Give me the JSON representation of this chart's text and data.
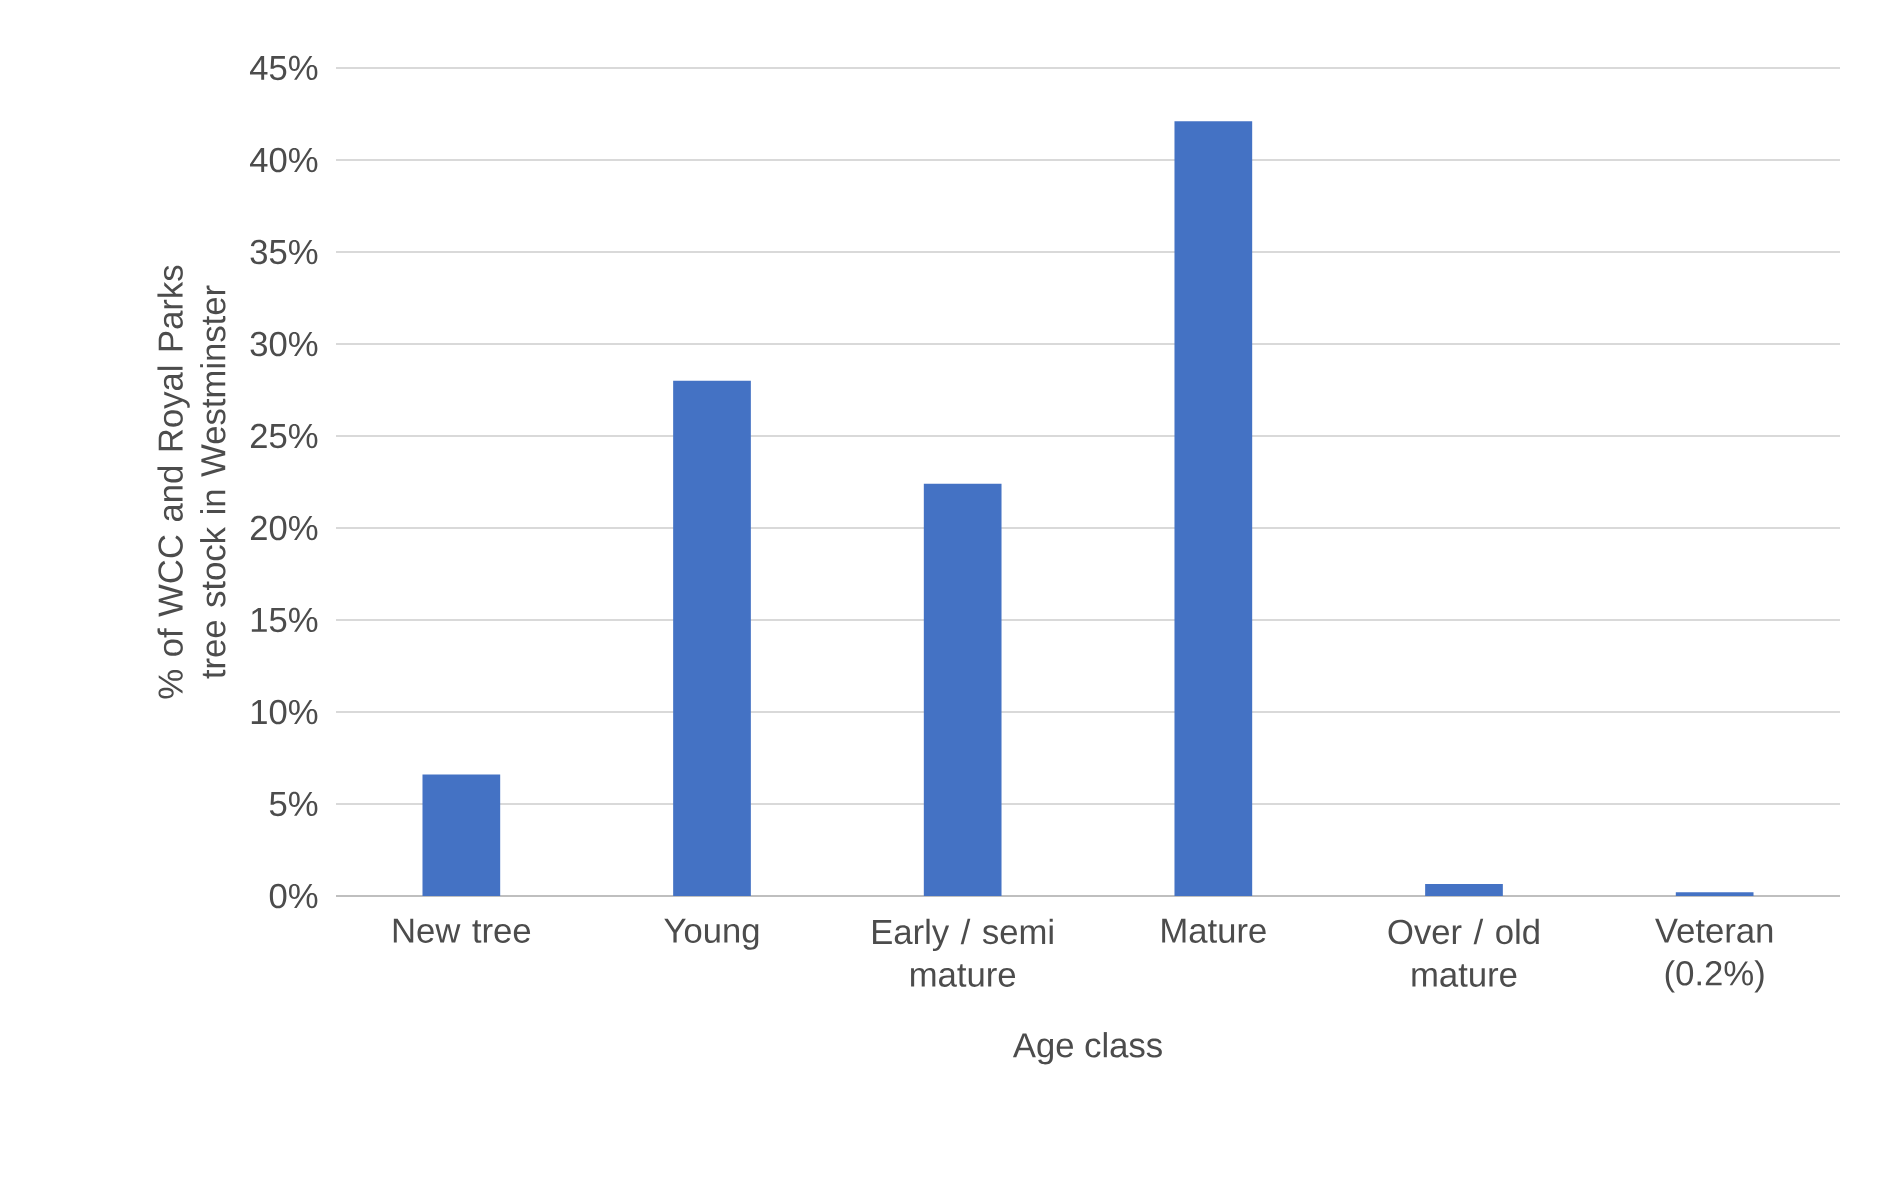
{
  "chart_data": {
    "type": "bar",
    "xlabel": "Age class",
    "ylabel": "% of WCC and Royal Parks tree stock in Westminster",
    "categories": [
      "New tree",
      "Young",
      "Early / semi mature",
      "Mature",
      "Over / old mature",
      "Veteran (0.2%)"
    ],
    "values": [
      6.6,
      28.0,
      22.4,
      42.1,
      0.65,
      0.2
    ],
    "color": "#4472c4",
    "ylim": [
      0,
      45
    ],
    "yticks": [
      {
        "value": 0,
        "label": "0%"
      },
      {
        "value": 5,
        "label": "5%"
      },
      {
        "value": 10,
        "label": "10%"
      },
      {
        "value": 15,
        "label": "15%"
      },
      {
        "value": 20,
        "label": "20%"
      },
      {
        "value": 25,
        "label": "25%"
      },
      {
        "value": 30,
        "label": "30%"
      },
      {
        "value": 35,
        "label": "35%"
      },
      {
        "value": 40,
        "label": "40%"
      },
      {
        "value": 45,
        "label": "45%"
      }
    ],
    "grid": "y"
  }
}
